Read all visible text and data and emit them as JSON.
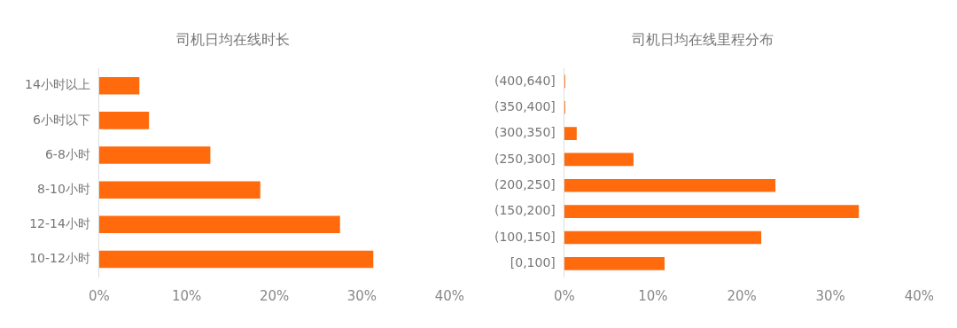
{
  "chart_data": [
    {
      "type": "bar",
      "orientation": "horizontal",
      "title": "司机日均在线时长",
      "categories": [
        "14小时以上",
        "6小时以下",
        "6-8小时",
        "8-10小时",
        "12-14小时",
        "10-12小时"
      ],
      "values": [
        4.6,
        5.7,
        12.7,
        18.4,
        27.5,
        31.3
      ],
      "color": "#ff6a0c",
      "xlim": [
        0,
        40
      ],
      "xticks": [
        {
          "value": 0,
          "label": "0%"
        },
        {
          "value": 10,
          "label": "10%"
        },
        {
          "value": 20,
          "label": "20%"
        },
        {
          "value": 30,
          "label": "30%"
        },
        {
          "value": 40,
          "label": "40%"
        }
      ],
      "grid": false,
      "legend": false
    },
    {
      "type": "bar",
      "orientation": "horizontal",
      "title": "司机日均在线里程分布",
      "categories": [
        "(400,640]",
        "(350,400]",
        "(300,350]",
        "(250,300]",
        "(200,250]",
        "(150,200]",
        "(100,150]",
        "[0,100]"
      ],
      "values": [
        0.1,
        0.1,
        1.4,
        7.8,
        23.8,
        33.2,
        22.2,
        11.3
      ],
      "color": "#ff6a0c",
      "xlim": [
        0,
        40
      ],
      "xticks": [
        {
          "value": 0,
          "label": "0%"
        },
        {
          "value": 10,
          "label": "10%"
        },
        {
          "value": 20,
          "label": "20%"
        },
        {
          "value": 30,
          "label": "30%"
        },
        {
          "value": 40,
          "label": "40%"
        }
      ],
      "grid": false,
      "legend": false
    }
  ]
}
